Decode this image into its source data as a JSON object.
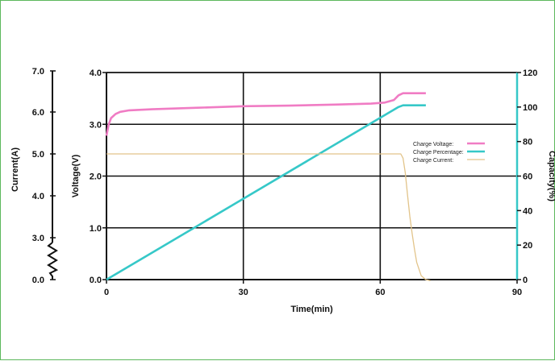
{
  "chart_data": {
    "type": "line",
    "xlabel": "Time(min)",
    "xlim": [
      0,
      90
    ],
    "x_ticks": [
      "0",
      "30",
      "60",
      "90"
    ],
    "axes": {
      "voltage": {
        "label": "Voltage(V)",
        "range": [
          0,
          4
        ],
        "ticks": [
          "0.0",
          "1.0",
          "2.0",
          "3.0",
          "4.0"
        ]
      },
      "current": {
        "label": "Current(A)",
        "ticks": [
          "0.0",
          "3.0",
          "4.0",
          "5.0",
          "6.0",
          "7.0"
        ],
        "broken": true
      },
      "capacity": {
        "label": "Capacity(%)",
        "range": [
          0,
          120
        ],
        "ticks": [
          "0",
          "20",
          "40",
          "60",
          "80",
          "100",
          "120"
        ]
      }
    },
    "grid": true,
    "legend_position": "right",
    "series": [
      {
        "name": "Charge Voltage:",
        "axis": "voltage",
        "color": "#f07cc4",
        "points": [
          [
            0,
            2.78
          ],
          [
            0.5,
            3.0
          ],
          [
            1,
            3.12
          ],
          [
            2,
            3.2
          ],
          [
            3,
            3.24
          ],
          [
            5,
            3.27
          ],
          [
            10,
            3.29
          ],
          [
            20,
            3.32
          ],
          [
            30,
            3.35
          ],
          [
            40,
            3.36
          ],
          [
            50,
            3.38
          ],
          [
            58,
            3.4
          ],
          [
            61,
            3.42
          ],
          [
            63,
            3.47
          ],
          [
            64,
            3.56
          ],
          [
            65,
            3.6
          ],
          [
            67,
            3.6
          ],
          [
            70,
            3.6
          ]
        ]
      },
      {
        "name": "Charge Percentage:",
        "axis": "capacity",
        "color": "#36c8c8",
        "points": [
          [
            0,
            0
          ],
          [
            64,
            100
          ],
          [
            65,
            101
          ],
          [
            70,
            101
          ]
        ]
      },
      {
        "name": "Charge Current:",
        "axis": "current",
        "color": "#e2c48a",
        "points": [
          [
            0,
            5.0
          ],
          [
            64.5,
            5.0
          ],
          [
            65,
            4.9
          ],
          [
            65.5,
            4.55
          ],
          [
            66,
            4.0
          ],
          [
            66.5,
            3.5
          ],
          [
            67,
            3.1
          ],
          [
            67.5,
            2.7
          ],
          [
            68,
            2.35
          ],
          [
            69,
            2.0
          ],
          [
            70,
            1.9
          ],
          [
            71,
            1.87
          ]
        ]
      }
    ]
  }
}
